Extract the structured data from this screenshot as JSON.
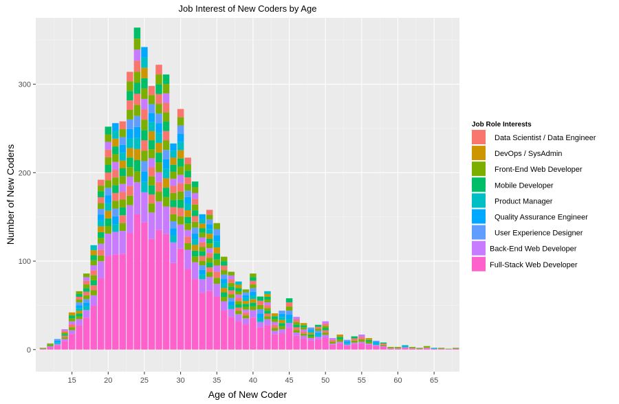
{
  "chart_data": {
    "type": "bar",
    "stacked": true,
    "title": "Job Interest of New Coders by Age",
    "xlabel": "Age of New Coder",
    "ylabel": "Number of New Coders",
    "xlim": [
      10,
      68.5
    ],
    "ylim": [
      -25,
      375
    ],
    "x_ticks": [
      15,
      20,
      25,
      30,
      35,
      40,
      45,
      50,
      55,
      60,
      65
    ],
    "y_ticks": [
      0,
      100,
      200,
      300
    ],
    "grid": true,
    "legend": {
      "title": "Job Role Interests",
      "position": "right"
    },
    "colors": {
      "Data Scientist / Data Engineer": "#F8766D",
      "DevOps / SysAdmin": "#CD9600",
      "Front-End Web Developer": "#7CAE00",
      "Mobile Developer": "#00BE67",
      "Product Manager": "#00BFC4",
      "Quality Assurance Engineer": "#00A9FF",
      "User Experience Designer": "#619CFF",
      "Back-End Web Developer": "#C77CFF",
      "Full-Stack Web Developer": "#FF61CC"
    },
    "series_order": [
      "Data Scientist / Data Engineer",
      "DevOps / SysAdmin",
      "Front-End Web Developer",
      "Mobile Developer",
      "Product Manager",
      "Quality Assurance Engineer",
      "User Experience Designer",
      "Back-End Web Developer",
      "Full-Stack Web Developer"
    ],
    "bars": [
      {
        "x": 11,
        "total": 2
      },
      {
        "x": 12,
        "total": 7
      },
      {
        "x": 13,
        "total": 12
      },
      {
        "x": 14,
        "total": 23
      },
      {
        "x": 15,
        "total": 42
      },
      {
        "x": 16,
        "total": 66
      },
      {
        "x": 17,
        "total": 86
      },
      {
        "x": 18,
        "total": 118
      },
      {
        "x": 19,
        "total": 192
      },
      {
        "x": 20,
        "total": 252
      },
      {
        "x": 21,
        "total": 256
      },
      {
        "x": 22,
        "total": 258
      },
      {
        "x": 23,
        "total": 314
      },
      {
        "x": 24,
        "total": 364
      },
      {
        "x": 25,
        "total": 342
      },
      {
        "x": 26,
        "total": 298
      },
      {
        "x": 27,
        "total": 322
      },
      {
        "x": 28,
        "total": 311
      },
      {
        "x": 29,
        "total": 233
      },
      {
        "x": 30,
        "total": 272
      },
      {
        "x": 31,
        "total": 217
      },
      {
        "x": 32,
        "total": 190
      },
      {
        "x": 33,
        "total": 153
      },
      {
        "x": 34,
        "total": 158
      },
      {
        "x": 35,
        "total": 143
      },
      {
        "x": 36,
        "total": 105
      },
      {
        "x": 37,
        "total": 88
      },
      {
        "x": 38,
        "total": 77
      },
      {
        "x": 39,
        "total": 68
      },
      {
        "x": 40,
        "total": 86
      },
      {
        "x": 41,
        "total": 60
      },
      {
        "x": 42,
        "total": 66
      },
      {
        "x": 43,
        "total": 41
      },
      {
        "x": 44,
        "total": 44
      },
      {
        "x": 45,
        "total": 58
      },
      {
        "x": 46,
        "total": 37
      },
      {
        "x": 47,
        "total": 30
      },
      {
        "x": 48,
        "total": 25
      },
      {
        "x": 49,
        "total": 28
      },
      {
        "x": 50,
        "total": 32
      },
      {
        "x": 51,
        "total": 13
      },
      {
        "x": 52,
        "total": 17
      },
      {
        "x": 53,
        "total": 11
      },
      {
        "x": 54,
        "total": 15
      },
      {
        "x": 55,
        "total": 17
      },
      {
        "x": 56,
        "total": 13
      },
      {
        "x": 57,
        "total": 10
      },
      {
        "x": 58,
        "total": 8
      },
      {
        "x": 59,
        "total": 3
      },
      {
        "x": 60,
        "total": 3
      },
      {
        "x": 61,
        "total": 5
      },
      {
        "x": 62,
        "total": 3
      },
      {
        "x": 63,
        "total": 2
      },
      {
        "x": 64,
        "total": 4
      },
      {
        "x": 65,
        "total": 2
      },
      {
        "x": 66,
        "total": 2
      },
      {
        "x": 67,
        "total": 1
      },
      {
        "x": 68,
        "total": 2
      }
    ]
  }
}
